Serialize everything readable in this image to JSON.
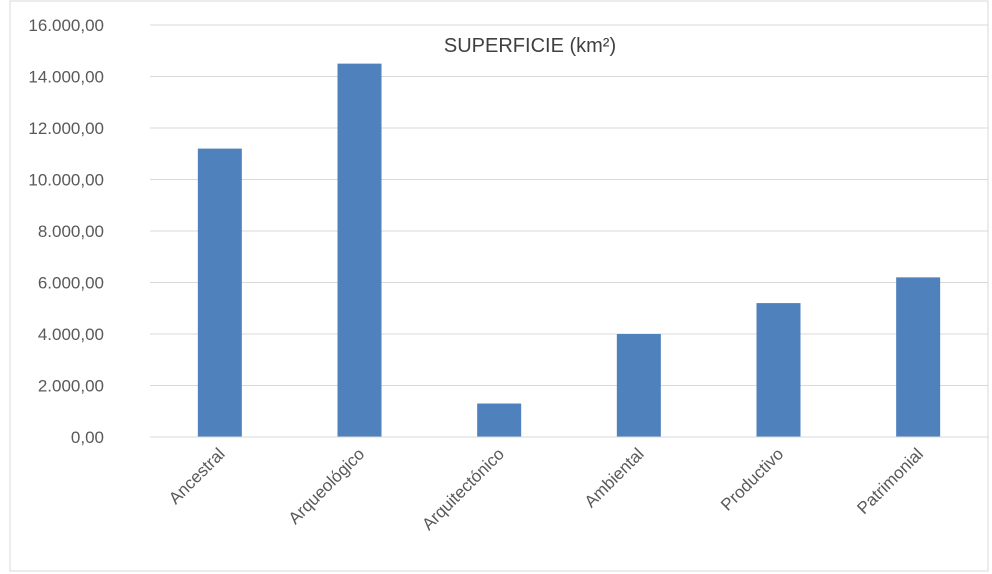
{
  "chart_data": {
    "type": "bar",
    "title": "SUPERFICIE (km²)",
    "categories": [
      "Ancestral",
      "Arqueológico",
      "Arquitectónico",
      "Ambiental",
      "Productivo",
      "Patrimonial"
    ],
    "values": [
      11200,
      14500,
      1300,
      4000,
      5200,
      6200
    ],
    "ylim": [
      0,
      16000
    ],
    "yticks": [
      "0,00",
      "2.000,00",
      "4.000,00",
      "6.000,00",
      "8.000,00",
      "10.000,00",
      "12.000,00",
      "14.000,00",
      "16.000,00"
    ],
    "grid": true,
    "legend": "none",
    "bar_color": "#4F81BD",
    "grid_color": "#D9D9D9",
    "border_color": "#D9D9D9"
  }
}
